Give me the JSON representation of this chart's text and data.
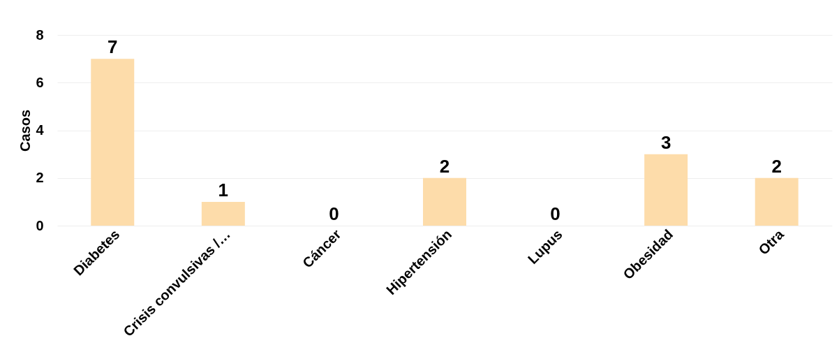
{
  "chart_data": {
    "type": "bar",
    "ylabel": "Casos",
    "categories": [
      "Diabetes",
      "Crisis convulsivas /…",
      "Cáncer",
      "Hipertensión",
      "Lupus",
      "Obesidad",
      "Otra"
    ],
    "values": [
      7,
      1,
      0,
      2,
      0,
      3,
      2
    ],
    "color": "#fddcaa",
    "ylim": [
      0,
      8
    ],
    "yticks": [
      0,
      2,
      4,
      6,
      8
    ],
    "grid": "y",
    "data_labels": true
  }
}
